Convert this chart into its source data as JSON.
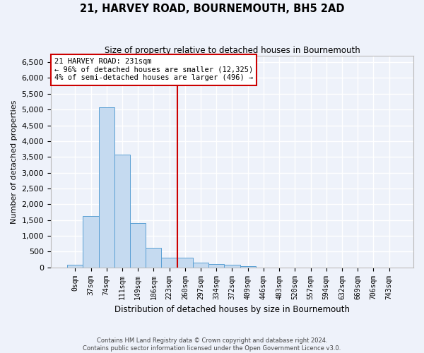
{
  "title": "21, HARVEY ROAD, BOURNEMOUTH, BH5 2AD",
  "subtitle": "Size of property relative to detached houses in Bournemouth",
  "xlabel": "Distribution of detached houses by size in Bournemouth",
  "ylabel": "Number of detached properties",
  "footer_line1": "Contains HM Land Registry data © Crown copyright and database right 2024.",
  "footer_line2": "Contains public sector information licensed under the Open Government Licence v3.0.",
  "bin_labels": [
    "0sqm",
    "37sqm",
    "74sqm",
    "111sqm",
    "149sqm",
    "186sqm",
    "223sqm",
    "260sqm",
    "297sqm",
    "334sqm",
    "372sqm",
    "409sqm",
    "446sqm",
    "483sqm",
    "520sqm",
    "557sqm",
    "594sqm",
    "632sqm",
    "669sqm",
    "706sqm",
    "743sqm"
  ],
  "bar_values": [
    75,
    1625,
    5075,
    3575,
    1400,
    625,
    300,
    300,
    150,
    100,
    75,
    40,
    0,
    0,
    0,
    0,
    0,
    0,
    0,
    0,
    0
  ],
  "bar_color": "#c5daf0",
  "bar_edge_color": "#5a9fd4",
  "vline_x": 6.5,
  "annotation_title": "21 HARVEY ROAD: 231sqm",
  "annotation_line1": "← 96% of detached houses are smaller (12,325)",
  "annotation_line2": "4% of semi-detached houses are larger (496) →",
  "vline_color": "#cc0000",
  "ylim_max": 6700,
  "yticks": [
    0,
    500,
    1000,
    1500,
    2000,
    2500,
    3000,
    3500,
    4000,
    4500,
    5000,
    5500,
    6000,
    6500
  ],
  "background_color": "#eef2fa",
  "grid_color": "#ffffff"
}
